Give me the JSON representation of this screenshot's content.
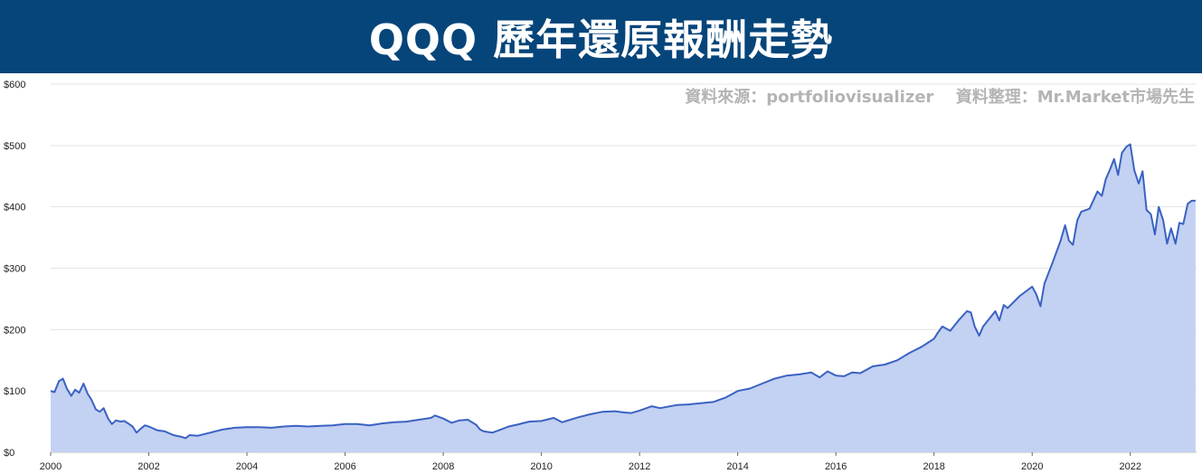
{
  "header": {
    "title": "QQQ 歷年還原報酬走勢"
  },
  "source": {
    "data_source": "資料來源：portfoliovisualizer",
    "compiled_by": "資料整理：Mr.Market市場先生"
  },
  "colors": {
    "banner": "#06457a",
    "line": "#3a62c2",
    "fill": "#c3d1f2",
    "grid": "#e3e3e3"
  },
  "chart_data": {
    "type": "area",
    "title": "QQQ 歷年還原報酬走勢",
    "xlabel": "",
    "ylabel": "",
    "ylim": [
      0,
      600
    ],
    "xlim": [
      2000,
      2023.35
    ],
    "grid": true,
    "y_ticks": [
      0,
      100,
      200,
      300,
      400,
      500,
      600
    ],
    "y_tick_labels": [
      "$0",
      "$100",
      "$200",
      "$300",
      "$400",
      "$500",
      "$600"
    ],
    "x_ticks": [
      2000,
      2002,
      2004,
      2006,
      2008,
      2010,
      2012,
      2014,
      2016,
      2018,
      2020,
      2022
    ],
    "x_tick_labels": [
      "2000",
      "2002",
      "2004",
      "2006",
      "2008",
      "2010",
      "2012",
      "2014",
      "2016",
      "2018",
      "2020",
      "2022"
    ],
    "series": [
      {
        "x": [
          2000.0,
          2000.08,
          2000.17,
          2000.25,
          2000.33,
          2000.42,
          2000.5,
          2000.58,
          2000.67,
          2000.75,
          2000.83,
          2000.92,
          2001.0,
          2001.08,
          2001.17,
          2001.25,
          2001.33,
          2001.42,
          2001.5,
          2001.58,
          2001.67,
          2001.75,
          2001.83,
          2001.92,
          2002.0,
          2002.17,
          2002.33,
          2002.5,
          2002.67,
          2002.75,
          2002.83,
          2003.0,
          2003.25,
          2003.5,
          2003.75,
          2004.0,
          2004.25,
          2004.5,
          2004.75,
          2005.0,
          2005.25,
          2005.5,
          2005.75,
          2006.0,
          2006.25,
          2006.5,
          2006.75,
          2007.0,
          2007.25,
          2007.5,
          2007.75,
          2007.83,
          2008.0,
          2008.17,
          2008.33,
          2008.5,
          2008.67,
          2008.75,
          2008.83,
          2008.92,
          2009.0,
          2009.17,
          2009.33,
          2009.5,
          2009.75,
          2010.0,
          2010.25,
          2010.42,
          2010.75,
          2011.0,
          2011.25,
          2011.5,
          2011.67,
          2011.83,
          2012.0,
          2012.25,
          2012.42,
          2012.75,
          2013.0,
          2013.5,
          2013.75,
          2014.0,
          2014.25,
          2014.5,
          2014.75,
          2015.0,
          2015.25,
          2015.5,
          2015.67,
          2015.83,
          2016.0,
          2016.17,
          2016.33,
          2016.5,
          2016.75,
          2017.0,
          2017.25,
          2017.5,
          2017.75,
          2018.0,
          2018.08,
          2018.17,
          2018.33,
          2018.5,
          2018.67,
          2018.75,
          2018.83,
          2018.92,
          2019.0,
          2019.25,
          2019.33,
          2019.42,
          2019.5,
          2019.75,
          2020.0,
          2020.08,
          2020.17,
          2020.25,
          2020.42,
          2020.58,
          2020.67,
          2020.75,
          2020.83,
          2020.92,
          2021.0,
          2021.17,
          2021.33,
          2021.42,
          2021.5,
          2021.58,
          2021.67,
          2021.75,
          2021.83,
          2021.92,
          2022.0,
          2022.08,
          2022.17,
          2022.25,
          2022.33,
          2022.42,
          2022.5,
          2022.58,
          2022.67,
          2022.75,
          2022.83,
          2022.92,
          2023.0,
          2023.08,
          2023.17,
          2023.25,
          2023.33
        ],
        "values": [
          100,
          98,
          116,
          120,
          104,
          92,
          102,
          97,
          112,
          96,
          86,
          70,
          66,
          72,
          55,
          46,
          52,
          50,
          51,
          47,
          42,
          32,
          38,
          44,
          42,
          36,
          34,
          28,
          25,
          23,
          28,
          27,
          32,
          37,
          40,
          41,
          41,
          40,
          42,
          43,
          42,
          43,
          44,
          46,
          46,
          44,
          47,
          49,
          50,
          53,
          56,
          60,
          55,
          48,
          52,
          53,
          45,
          37,
          34,
          33,
          32,
          37,
          42,
          45,
          50,
          51,
          56,
          49,
          57,
          62,
          66,
          67,
          65,
          64,
          68,
          75,
          72,
          77,
          78,
          82,
          89,
          100,
          104,
          112,
          120,
          125,
          127,
          130,
          122,
          132,
          125,
          124,
          130,
          129,
          140,
          143,
          150,
          162,
          172,
          185,
          195,
          205,
          198,
          215,
          230,
          228,
          205,
          190,
          205,
          230,
          215,
          240,
          235,
          255,
          270,
          258,
          238,
          275,
          310,
          345,
          370,
          345,
          338,
          378,
          392,
          397,
          425,
          418,
          445,
          460,
          478,
          452,
          488,
          498,
          502,
          460,
          438,
          458,
          395,
          388,
          355,
          400,
          378,
          340,
          365,
          340,
          374,
          372,
          405,
          410,
          410
        ]
      }
    ]
  }
}
